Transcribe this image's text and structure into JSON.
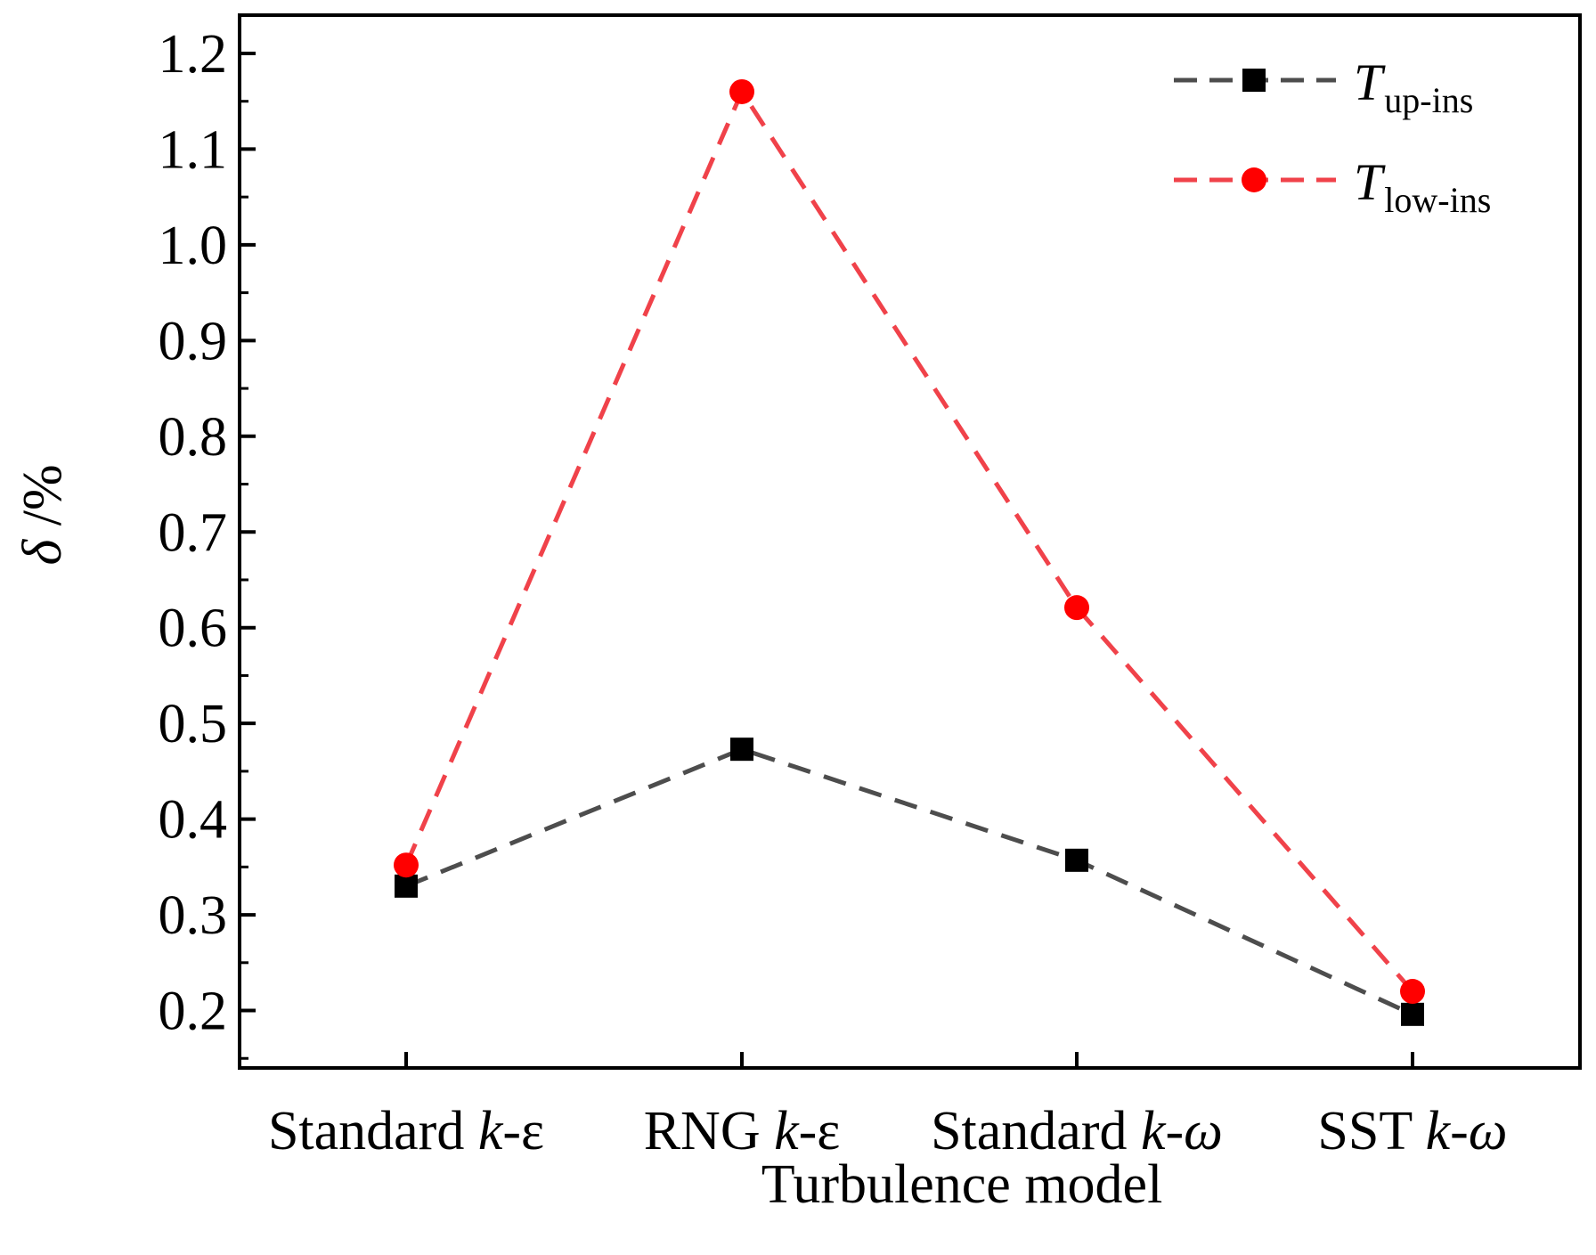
{
  "chart_data": {
    "type": "line",
    "title": "",
    "xlabel": "Turbulence model",
    "ylabel": {
      "symbol": "δ",
      "unit": " /%"
    },
    "categories": [
      {
        "prefix": "Standard ",
        "italic": "k",
        "suffix": "-ε"
      },
      {
        "prefix": "RNG ",
        "italic": "k",
        "suffix": "-ε"
      },
      {
        "prefix": "Standard ",
        "italic": "k-ω",
        "suffix": ""
      },
      {
        "prefix": "SST ",
        "italic": "k-ω",
        "suffix": ""
      }
    ],
    "ylim": [
      0.14,
      1.24
    ],
    "yticks": [
      "0.2",
      "0.3",
      "0.4",
      "0.5",
      "0.6",
      "0.7",
      "0.8",
      "0.9",
      "1.0",
      "1.1",
      "1.2"
    ],
    "ytick_values": [
      0.2,
      0.3,
      0.4,
      0.5,
      0.6,
      0.7,
      0.8,
      0.9,
      1.0,
      1.1,
      1.2
    ],
    "series": [
      {
        "name": "T_up-ins",
        "legend_main": "T",
        "legend_sub": "up-ins",
        "color": "#4d4d4d",
        "marker_color": "#000000",
        "marker": "square",
        "values": [
          0.33,
          0.473,
          0.357,
          0.196
        ]
      },
      {
        "name": "T_low-ins",
        "legend_main": "T",
        "legend_sub": "low-ins",
        "color": "#f0424a",
        "marker_color": "#ff0000",
        "marker": "circle",
        "values": [
          0.352,
          1.16,
          0.621,
          0.22
        ]
      }
    ],
    "grid": false,
    "legend_position": "top-right"
  }
}
